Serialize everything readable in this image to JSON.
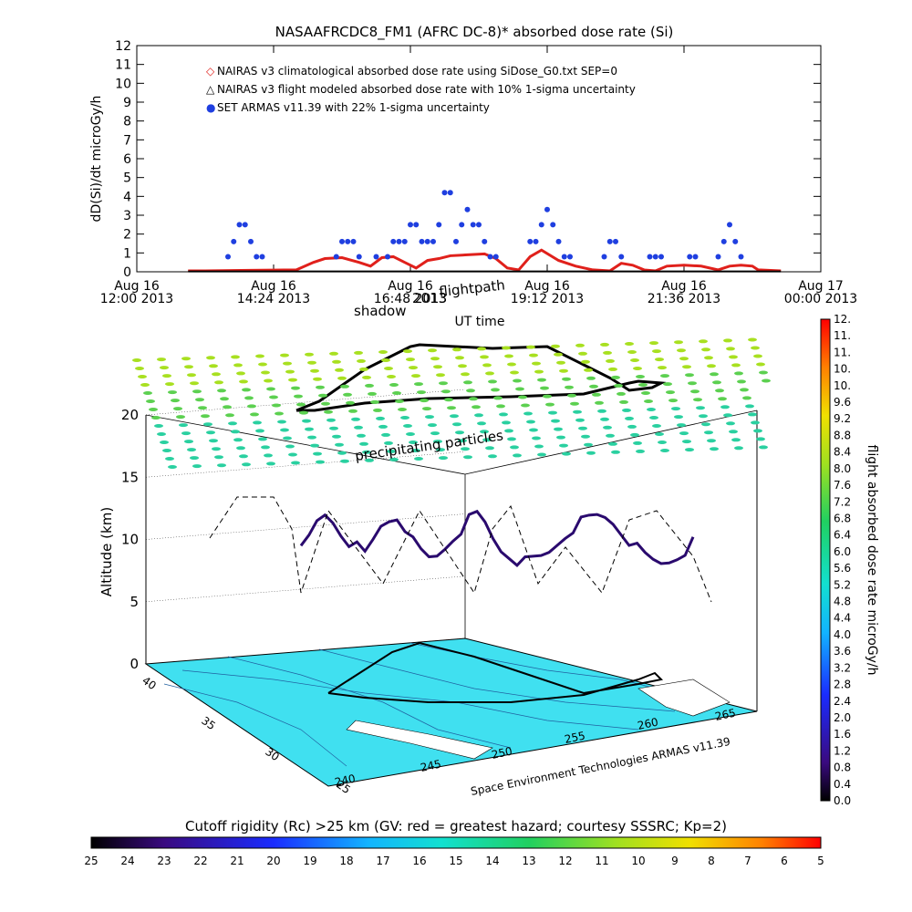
{
  "chart_data": [
    {
      "type": "line",
      "title": "NASAAFRCDC8_FM1 (AFRC DC-8)* absorbed dose rate (Si)",
      "ylabel": "dD(Si)/dt microGy/h",
      "xlabel": "UT time",
      "ylim": [
        0,
        12
      ],
      "y_ticks": [
        "0",
        "1",
        "2",
        "3",
        "4",
        "5",
        "6",
        "7",
        "8",
        "9",
        "10",
        "11",
        "12"
      ],
      "x_ticks": [
        {
          "day": "Aug 16",
          "time": "12:00 2013"
        },
        {
          "day": "Aug 16",
          "time": "14:24 2013"
        },
        {
          "day": "Aug 16",
          "time": "16:48 2013"
        },
        {
          "day": "Aug 16",
          "time": "19:12 2013"
        },
        {
          "day": "Aug 16",
          "time": "21:36 2013"
        },
        {
          "day": "Aug 17",
          "time": "00:00 2013"
        }
      ],
      "x_hours": [
        12.0,
        14.4,
        16.8,
        19.2,
        21.6,
        24.0
      ],
      "legend": [
        {
          "marker": "◇",
          "color": "#e0201b",
          "label": "NAIRAS v3 climatological absorbed dose rate using SiDose_G0.txt SEP=0"
        },
        {
          "marker": "△",
          "color": "#000000",
          "label": "NAIRAS v3 flight modeled absorbed dose rate with 10% 1-sigma uncertainty"
        },
        {
          "marker": "●",
          "color": "#1f3fe0",
          "label": "SET ARMAS v11.39 with 22% 1-sigma uncertainty"
        }
      ],
      "series": [
        {
          "name": "NAIRAS v3 climatological absorbed dose rate using SiDose_G0.txt SEP=0",
          "color": "#e0201b",
          "x": [
            12.9,
            13.2,
            14.0,
            14.8,
            15.1,
            15.3,
            15.6,
            15.9,
            16.1,
            16.3,
            16.5,
            16.7,
            16.9,
            17.1,
            17.3,
            17.5,
            17.8,
            18.1,
            18.3,
            18.5,
            18.7,
            18.9,
            19.1,
            19.4,
            19.7,
            20.0,
            20.3,
            20.5,
            20.7,
            20.9,
            21.1,
            21.3,
            21.6,
            21.9,
            22.2,
            22.4,
            22.6,
            22.8,
            22.9,
            23.3
          ],
          "y": [
            0.05,
            0.05,
            0.08,
            0.1,
            0.5,
            0.7,
            0.75,
            0.5,
            0.3,
            0.75,
            0.8,
            0.5,
            0.2,
            0.6,
            0.7,
            0.85,
            0.9,
            0.95,
            0.7,
            0.2,
            0.1,
            0.8,
            1.15,
            0.6,
            0.3,
            0.1,
            0.05,
            0.45,
            0.35,
            0.1,
            0.05,
            0.3,
            0.35,
            0.3,
            0.1,
            0.3,
            0.35,
            0.3,
            0.1,
            0.05
          ]
        },
        {
          "name": "NAIRAS v3 flight modeled absorbed dose rate with 10% 1-sigma uncertainty",
          "color": "#000000",
          "x": [
            12.9,
            23.3
          ],
          "y": [
            0.02,
            0.02
          ]
        },
        {
          "name": "SET ARMAS v11.39 with 22% 1-sigma uncertainty",
          "color": "#1f3fe0",
          "x": [
            13.6,
            13.7,
            13.8,
            13.9,
            14.0,
            14.1,
            14.2,
            15.5,
            15.6,
            15.7,
            15.8,
            15.9,
            16.2,
            16.4,
            16.5,
            16.6,
            16.7,
            16.8,
            16.9,
            17.0,
            17.1,
            17.2,
            17.3,
            17.4,
            17.5,
            17.6,
            17.7,
            17.8,
            17.9,
            18.0,
            18.1,
            18.2,
            18.3,
            18.9,
            19.0,
            19.1,
            19.2,
            19.3,
            19.4,
            19.5,
            19.6,
            20.2,
            20.3,
            20.4,
            20.5,
            21.0,
            21.1,
            21.2,
            21.7,
            21.8,
            22.2,
            22.3,
            22.4,
            22.5,
            22.6
          ],
          "y": [
            0.8,
            1.6,
            2.5,
            2.5,
            1.6,
            0.8,
            0.8,
            0.8,
            1.6,
            1.6,
            1.6,
            0.8,
            0.8,
            0.8,
            1.6,
            1.6,
            1.6,
            2.5,
            2.5,
            1.6,
            1.6,
            1.6,
            2.5,
            4.2,
            4.2,
            1.6,
            2.5,
            3.3,
            2.5,
            2.5,
            1.6,
            0.8,
            0.8,
            1.6,
            1.6,
            2.5,
            3.3,
            2.5,
            1.6,
            0.8,
            0.8,
            0.8,
            1.6,
            1.6,
            0.8,
            0.8,
            0.8,
            0.8,
            0.8,
            0.8,
            0.8,
            1.6,
            2.5,
            1.6,
            0.8
          ]
        }
      ]
    },
    {
      "type": "scatter",
      "title": "",
      "annotations": [
        "shadow",
        "flightpath",
        "precipitating particles",
        "Space Environment Technologies ARMAS v11.39"
      ],
      "overlap_text": "2013",
      "zlabel": "Altitude (km)",
      "z_ticks": [
        "0",
        "5",
        "10",
        "15",
        "20"
      ],
      "zlim": [
        0,
        20
      ],
      "lat_ticks": [
        "40",
        "35",
        "30",
        "25"
      ],
      "lon_ticks": [
        "240",
        "245",
        "250",
        "255",
        "260",
        "265"
      ],
      "flight_altitude_km": [
        9.5,
        10.5,
        11.8,
        12.4,
        11.9,
        11.0,
        10.3,
        9.8,
        9.2,
        10.3,
        11.5,
        12.0,
        12.3,
        11.5,
        10.2,
        9.4,
        8.9,
        9.1,
        9.8,
        10.6,
        11.3,
        12.0,
        12.4,
        11.7,
        10.5,
        9.6,
        9.2,
        8.8,
        8.6,
        8.8,
        9.0,
        9.4,
        10.1,
        10.8,
        11.4,
        11.8,
        12.1,
        12.3,
        12.2,
        11.8,
        11.1,
        10.4,
        9.7,
        9.1,
        8.7,
        8.5,
        8.7,
        9.1,
        9.6,
        10.2
      ],
      "colorbar": {
        "label": "flight absorbed dose rate microGy/h",
        "ticks": [
          "0.0",
          "0.4",
          "0.8",
          "1.2",
          "1.6",
          "2.0",
          "2.4",
          "2.8",
          "3.2",
          "3.6",
          "4.0",
          "4.4",
          "4.8",
          "5.2",
          "5.6",
          "6.0",
          "6.4",
          "6.8",
          "7.2",
          "7.6",
          "8.0",
          "8.4",
          "8.8",
          "9.2",
          "9.6",
          "10.",
          "10.",
          "11.",
          "11.",
          "12."
        ]
      },
      "cutoff_colorbar": {
        "label": "Cutoff rigidity (Rc) >25 km (GV: red = greatest hazard; courtesy SSSRC; Kp=2)",
        "ticks": [
          "25",
          "24",
          "23",
          "22",
          "21",
          "20",
          "19",
          "18",
          "17",
          "16",
          "15",
          "14",
          "13",
          "12",
          "11",
          "10",
          "9",
          "8",
          "7",
          "6",
          "5"
        ]
      },
      "colors": {
        "map_fill": "#40e0f0",
        "flight_track": "#000000",
        "dose_track_low": "#2a0a6e"
      }
    }
  ]
}
